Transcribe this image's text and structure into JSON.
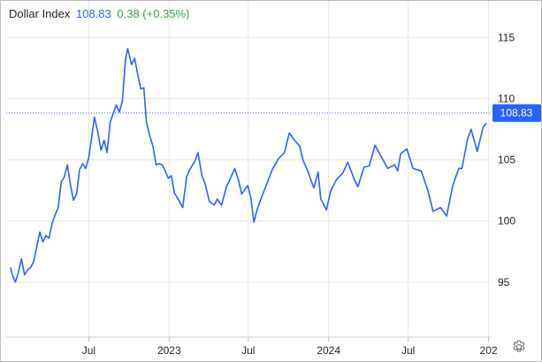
{
  "header": {
    "name": "Dollar Index",
    "price": "108.83",
    "change": "0.38 (+0.35%)"
  },
  "colors": {
    "line": "#2962ff",
    "badge": "#2962ff",
    "change_positive": "#3ba341",
    "grid": "#e6e6e6"
  },
  "icons": {
    "settings": "gear-icon"
  },
  "chart_data": {
    "type": "line",
    "title": "Dollar Index",
    "xlabel": "",
    "ylabel": "",
    "x_range": [
      "2022-01-01",
      "2024-12-31"
    ],
    "ylim": [
      90.5,
      118
    ],
    "x_ticks": [
      {
        "date": "2022-07-01",
        "label": "Jul"
      },
      {
        "date": "2023-01-01",
        "label": "2023"
      },
      {
        "date": "2023-07-01",
        "label": "Jul"
      },
      {
        "date": "2024-01-01",
        "label": "2024"
      },
      {
        "date": "2024-07-01",
        "label": "Jul"
      },
      {
        "date": "2025-01-01",
        "label": "202"
      }
    ],
    "y_ticks": [
      95,
      100,
      105,
      110,
      115
    ],
    "last_value": 108.83,
    "last_value_label": "108.83",
    "grid": true,
    "series": [
      {
        "x": [
          "2022-01-03",
          "2022-01-07",
          "2022-01-14",
          "2022-01-21",
          "2022-01-28",
          "2022-02-04",
          "2022-02-11",
          "2022-02-18",
          "2022-02-25",
          "2022-03-04",
          "2022-03-11",
          "2022-03-18",
          "2022-03-25",
          "2022-04-01",
          "2022-04-08",
          "2022-04-15",
          "2022-04-22",
          "2022-04-29",
          "2022-05-06",
          "2022-05-13",
          "2022-05-20",
          "2022-05-27",
          "2022-06-03",
          "2022-06-10",
          "2022-06-17",
          "2022-06-24",
          "2022-07-01",
          "2022-07-08",
          "2022-07-14",
          "2022-07-22",
          "2022-07-29",
          "2022-08-05",
          "2022-08-12",
          "2022-08-19",
          "2022-08-26",
          "2022-09-02",
          "2022-09-09",
          "2022-09-16",
          "2022-09-23",
          "2022-09-28",
          "2022-10-07",
          "2022-10-14",
          "2022-10-21",
          "2022-10-28",
          "2022-11-04",
          "2022-11-10",
          "2022-11-18",
          "2022-11-25",
          "2022-12-02",
          "2022-12-09",
          "2022-12-16",
          "2022-12-23",
          "2022-12-30",
          "2023-01-06",
          "2023-01-13",
          "2023-01-20",
          "2023-02-01",
          "2023-02-10",
          "2023-02-17",
          "2023-03-01",
          "2023-03-08",
          "2023-03-17",
          "2023-03-24",
          "2023-04-03",
          "2023-04-14",
          "2023-04-21",
          "2023-05-01",
          "2023-05-12",
          "2023-05-19",
          "2023-05-31",
          "2023-06-09",
          "2023-06-16",
          "2023-06-30",
          "2023-07-07",
          "2023-07-14",
          "2023-07-21",
          "2023-07-31",
          "2023-08-11",
          "2023-08-25",
          "2023-09-08",
          "2023-09-22",
          "2023-10-03",
          "2023-10-13",
          "2023-10-27",
          "2023-11-03",
          "2023-11-14",
          "2023-11-28",
          "2023-12-08",
          "2023-12-14",
          "2023-12-27",
          "2024-01-05",
          "2024-01-19",
          "2024-02-02",
          "2024-02-14",
          "2024-03-01",
          "2024-03-08",
          "2024-03-22",
          "2024-04-03",
          "2024-04-16",
          "2024-05-03",
          "2024-05-15",
          "2024-05-31",
          "2024-06-07",
          "2024-06-14",
          "2024-06-28",
          "2024-07-12",
          "2024-07-31",
          "2024-08-15",
          "2024-08-27",
          "2024-09-13",
          "2024-09-27",
          "2024-10-11",
          "2024-10-25",
          "2024-11-01",
          "2024-11-14",
          "2024-11-22",
          "2024-12-06",
          "2024-12-20",
          "2024-12-27"
        ],
        "y": [
          96.2,
          95.6,
          95.0,
          95.8,
          96.9,
          95.6,
          96.0,
          96.2,
          96.7,
          97.9,
          99.1,
          98.3,
          98.8,
          98.6,
          99.8,
          100.5,
          101.1,
          103.2,
          103.6,
          104.6,
          103.0,
          101.7,
          102.2,
          104.2,
          104.7,
          104.3,
          105.2,
          107.0,
          108.5,
          107.2,
          105.8,
          106.6,
          105.6,
          108.1,
          108.8,
          109.5,
          108.9,
          109.8,
          113.2,
          114.1,
          112.8,
          113.3,
          112.0,
          110.8,
          110.9,
          108.1,
          106.9,
          106.1,
          104.6,
          104.7,
          104.6,
          104.1,
          103.5,
          103.7,
          102.3,
          101.9,
          101.1,
          103.6,
          104.2,
          104.9,
          105.6,
          103.7,
          103.1,
          101.6,
          101.3,
          101.8,
          101.3,
          102.8,
          103.3,
          104.3,
          103.3,
          102.2,
          102.9,
          101.9,
          99.9,
          100.9,
          101.9,
          102.9,
          104.2,
          105.1,
          105.6,
          107.2,
          106.7,
          106.1,
          105.0,
          104.1,
          102.7,
          104.0,
          101.8,
          100.9,
          102.4,
          103.4,
          103.9,
          104.8,
          103.3,
          102.8,
          104.4,
          104.5,
          106.2,
          105.1,
          104.3,
          104.6,
          104.1,
          105.5,
          105.9,
          104.3,
          104.1,
          102.5,
          100.8,
          101.1,
          100.4,
          102.9,
          104.3,
          104.3,
          106.7,
          107.5,
          105.7,
          107.7,
          108.0
        ]
      }
    ]
  }
}
